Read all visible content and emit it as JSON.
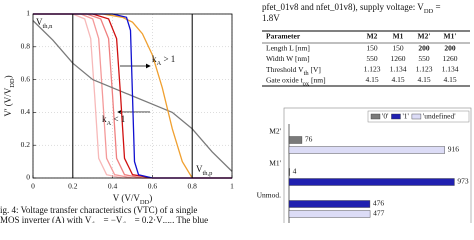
{
  "chart_data": [
    {
      "type": "line",
      "x_label": [
        {
          "text": "V (V/V"
        },
        {
          "sub": "DD"
        },
        {
          "text": ")"
        }
      ],
      "y_label": [
        {
          "text": "V' (V/V"
        },
        {
          "sub": "DD"
        },
        {
          "text": ")"
        }
      ],
      "xlim": [
        0,
        1
      ],
      "ylim": [
        0,
        1
      ],
      "xticks": [
        0,
        0.2,
        0.4,
        0.6,
        0.8,
        1
      ],
      "yticks": [
        0,
        0.2,
        0.4,
        0.6,
        0.8,
        1
      ],
      "grid": true,
      "vlines": [
        0.2,
        0.8
      ],
      "annotations": {
        "vth_n": [
          {
            "text": "V"
          },
          {
            "sub": "th,n"
          }
        ],
        "vth_p": [
          {
            "text": "V"
          },
          {
            "sub": "th,p"
          }
        ],
        "ka_gt": [
          {
            "text": "k"
          },
          {
            "sub": "A"
          },
          {
            "text": " > 1"
          }
        ],
        "ka_lt": [
          {
            "text": "k"
          },
          {
            "sub": "A"
          },
          {
            "text": " < 1"
          }
        ]
      },
      "series": [
        {
          "color": "#f7b9b9",
          "x": [
            0,
            0.2,
            0.26,
            0.29,
            0.31,
            0.33,
            0.37,
            0.45,
            1
          ],
          "y": [
            1,
            1,
            0.97,
            0.85,
            0.5,
            0.12,
            0.02,
            0,
            0
          ]
        },
        {
          "color": "#f49a9a",
          "x": [
            0,
            0.24,
            0.3,
            0.33,
            0.35,
            0.37,
            0.41,
            0.5,
            1
          ],
          "y": [
            1,
            1,
            0.97,
            0.85,
            0.5,
            0.12,
            0.02,
            0,
            0
          ]
        },
        {
          "color": "#ef7f7f",
          "x": [
            0,
            0.27,
            0.34,
            0.38,
            0.4,
            0.42,
            0.46,
            0.55,
            1
          ],
          "y": [
            1,
            1,
            0.97,
            0.85,
            0.5,
            0.12,
            0.02,
            0,
            0
          ]
        },
        {
          "color": "#7a7a7a",
          "x": [
            0,
            0.1,
            0.2,
            0.3,
            0.4,
            0.5,
            0.6,
            0.7,
            0.8,
            0.9,
            1
          ],
          "y": [
            0.96,
            0.84,
            0.7,
            0.6,
            0.55,
            0.5,
            0.45,
            0.4,
            0.3,
            0.16,
            0.04
          ]
        },
        {
          "color": "#f0a030",
          "x": [
            0,
            0.35,
            0.45,
            0.5,
            0.55,
            0.6,
            0.65,
            0.7,
            0.75,
            0.8,
            1
          ],
          "y": [
            1,
            1,
            0.98,
            0.95,
            0.88,
            0.75,
            0.55,
            0.3,
            0.1,
            0,
            0
          ]
        },
        {
          "color": "#d01010",
          "x": [
            0,
            0.3,
            0.38,
            0.42,
            0.44,
            0.46,
            0.5,
            0.6,
            1
          ],
          "y": [
            1,
            1,
            0.97,
            0.85,
            0.5,
            0.12,
            0.02,
            0,
            0
          ]
        },
        {
          "color": "#1010d0",
          "x": [
            0,
            0.4,
            0.47,
            0.49,
            0.5,
            0.51,
            0.53,
            0.6,
            1
          ],
          "y": [
            1,
            1,
            0.98,
            0.9,
            0.5,
            0.1,
            0.02,
            0,
            0
          ]
        }
      ]
    },
    {
      "type": "bar",
      "orientation": "horizontal",
      "categories": [
        "M2'",
        "M1'",
        "Unmod."
      ],
      "xlim": [
        0,
        1000
      ],
      "series": [
        {
          "name": "'0'",
          "color": "#7a7a7a",
          "values": [
            76,
            4,
            null
          ]
        },
        {
          "name": "'1'",
          "color": "#2020b0",
          "values": [
            null,
            973,
            476
          ]
        },
        {
          "name": "'undefined'",
          "color": "#dcdcf6",
          "values": [
            916,
            null,
            477
          ]
        }
      ]
    }
  ],
  "caption": {
    "lines": [
      [
        {
          "text": "ig. 4: Voltage transfer characteristics (VTC) of a single"
        }
      ],
      [
        {
          "text": "MOS inverter (A) with V"
        },
        {
          "sub": "th,n"
        },
        {
          "text": " = −V"
        },
        {
          "sub": "th,p"
        },
        {
          "text": " = 0.2·V"
        },
        {
          "sub": "DD"
        },
        {
          "text": ". The blue"
        }
      ]
    ]
  },
  "top_text": {
    "lines": [
      [
        {
          "text": "pfet_01v8 and nfet_01v8), supply voltage: V"
        },
        {
          "sub": "DD"
        },
        {
          "text": " ="
        }
      ],
      [
        {
          "text": "1.8V"
        }
      ]
    ]
  },
  "table": {
    "header": [
      "Parameter",
      "M2",
      "M1",
      "M2'",
      "M1'"
    ],
    "rows": [
      [
        "Length L [nm]",
        "150",
        "150",
        {
          "text": "200",
          "bold": true
        },
        {
          "text": "200",
          "bold": true
        }
      ],
      [
        "Width W [nm]",
        "550",
        "1260",
        "550",
        "1260"
      ],
      [
        [
          {
            "text": "Threshold V"
          },
          {
            "sub": "th"
          },
          {
            "text": " [V]"
          }
        ],
        "1.123",
        "1.134",
        "1.123",
        "1.134"
      ],
      [
        [
          {
            "text": "Gate oxide t"
          },
          {
            "sub": "ox"
          },
          {
            "text": " [nm]"
          }
        ],
        "4.15",
        "4.15",
        "4.15",
        "4.15"
      ]
    ]
  }
}
